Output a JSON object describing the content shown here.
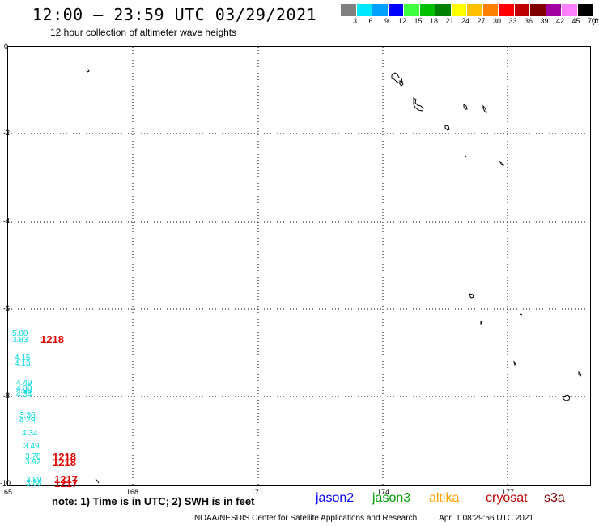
{
  "header": {
    "title": "12:00 — 23:59 UTC 03/29/2021",
    "subtitle": "12 hour collection of altimeter wave heights"
  },
  "legend": {
    "colors": [
      "#808080",
      "#00e8ff",
      "#00a0ff",
      "#0000ff",
      "#40ff40",
      "#00c000",
      "#008000",
      "#ffff00",
      "#ffc000",
      "#ff8000",
      "#ff0000",
      "#c00000",
      "#800000",
      "#a000a0",
      "#ff80ff",
      "#000000"
    ],
    "labels": [
      "3",
      "6",
      "9",
      "12",
      "15",
      "18",
      "21",
      "24",
      "27",
      "30",
      "33",
      "36",
      "39",
      "42",
      "45",
      "70",
      "(ft)"
    ]
  },
  "axes": {
    "x_ticks": [
      "165",
      "168",
      "171",
      "174",
      "177"
    ],
    "y_ticks": [
      "0",
      "-2",
      "-4",
      "-6",
      "-8",
      "-10"
    ]
  },
  "observations": {
    "swh_values": [
      "5.00",
      "3.83",
      "4.15",
      "4.13",
      "4.49",
      "4.30",
      "4.38",
      "4.34",
      "3.36",
      "4.29",
      "4.34",
      "3.49",
      "3.78",
      "3.92",
      "3.89",
      "3.88"
    ],
    "pass_labels": [
      "1218",
      "1218",
      "1218",
      "1217",
      "1217"
    ]
  },
  "note": "note: 1) Time is in UTC; 2) SWH is in feet",
  "satellites": [
    {
      "name": "jason2",
      "color": "#0000ff"
    },
    {
      "name": "jason3",
      "color": "#00a000"
    },
    {
      "name": "altika",
      "color": "#ffa000"
    },
    {
      "name": "cryosat",
      "color": "#c00000"
    },
    {
      "name": "s3a",
      "color": "#800000"
    }
  ],
  "footer": {
    "credit": "NOAA/NESDIS Center for Satellite Applications and Research",
    "timestamp": "Apr  1 08:29:56 UTC 2021"
  }
}
